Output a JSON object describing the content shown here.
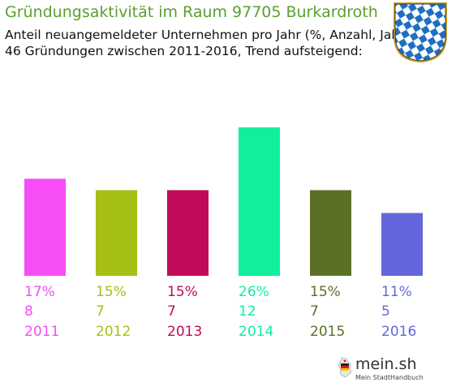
{
  "header": {
    "title": "Gründungsaktivität im Raum 97705 Burkardroth",
    "subtitle_line1": "Anteil neuangemeldeter Unternehmen pro Jahr (%, Anzahl, Jahr)",
    "subtitle_line2": "46 Gründungen zwischen 2011-2016, Trend aufsteigend:"
  },
  "crest": {
    "icon": "bavaria-coat-of-arms-icon",
    "colors": [
      "#1e6fc4",
      "#ffffff",
      "#c9a227"
    ]
  },
  "brand": {
    "name": "mein.sh",
    "tagline": "Mein StadtHandbuch",
    "icon": "germany-map-icon"
  },
  "chart_data": {
    "type": "bar",
    "categories": [
      "2011",
      "2012",
      "2013",
      "2014",
      "2015",
      "2016"
    ],
    "values": [
      17,
      15,
      15,
      26,
      15,
      11
    ],
    "percent_labels": [
      "17%",
      "15%",
      "15%",
      "26%",
      "15%",
      "11%"
    ],
    "counts": [
      "8",
      "7",
      "7",
      "12",
      "7",
      "5"
    ],
    "colors": [
      "#f64df6",
      "#a6bf14",
      "#c20a58",
      "#11ef9d",
      "#5a7027",
      "#6466db"
    ],
    "ylim": [
      0,
      26
    ],
    "grid": false,
    "title": "",
    "xlabel": "",
    "ylabel": ""
  }
}
